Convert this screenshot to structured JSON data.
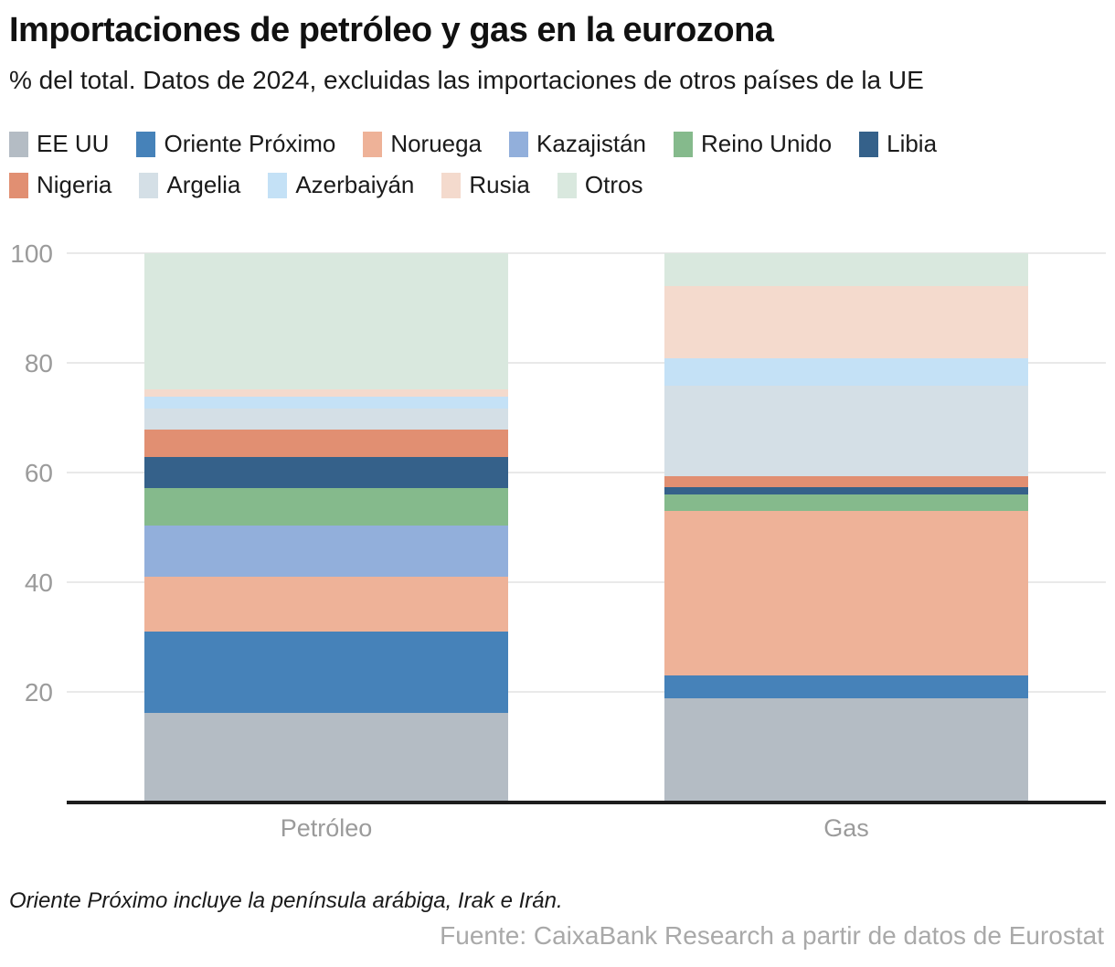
{
  "header": {
    "title": "Importaciones de petróleo y gas en la eurozona",
    "subtitle": "% del total. Datos de 2024, excluidas las importaciones de otros países de la UE"
  },
  "chart_data": {
    "type": "bar",
    "stacked": true,
    "categories": [
      "Petróleo",
      "Gas"
    ],
    "series": [
      {
        "name": "EE UU",
        "color": "#b4bcc4",
        "values": [
          16.2,
          18.8
        ]
      },
      {
        "name": "Oriente Próximo",
        "color": "#4682b9",
        "values": [
          14.8,
          4.2
        ]
      },
      {
        "name": "Noruega",
        "color": "#eeb298",
        "values": [
          10.0,
          30.0
        ]
      },
      {
        "name": "Kazajistán",
        "color": "#92afdb",
        "values": [
          9.3,
          0
        ]
      },
      {
        "name": "Reino Unido",
        "color": "#85ba8c",
        "values": [
          6.9,
          3.0
        ]
      },
      {
        "name": "Libia",
        "color": "#35618a",
        "values": [
          5.6,
          1.3
        ]
      },
      {
        "name": "Nigeria",
        "color": "#e18f72",
        "values": [
          5.0,
          2.0
        ]
      },
      {
        "name": "Argelia",
        "color": "#d4dfe6",
        "values": [
          3.9,
          16.5
        ]
      },
      {
        "name": "Azerbaiyán",
        "color": "#c4e1f6",
        "values": [
          2.1,
          5.0
        ]
      },
      {
        "name": "Rusia",
        "color": "#f4dacd",
        "values": [
          1.4,
          13.2
        ]
      },
      {
        "name": "Otros",
        "color": "#d9e8de",
        "values": [
          24.8,
          6.0
        ]
      }
    ],
    "title": "Importaciones de petróleo y gas en la eurozona",
    "xlabel": "",
    "ylabel": "% del total",
    "ylim": [
      0,
      100
    ],
    "yticks": [
      20,
      40,
      60,
      80,
      100
    ],
    "grid": true,
    "legend_position": "top"
  },
  "footer": {
    "note": "Oriente Próximo incluye la península arábiga, Irak e Irán.",
    "source": "Fuente: CaixaBank Research a partir de datos de Eurostat"
  },
  "colors": {
    "axis_line": "#1d1d1d",
    "gridline": "#e9e9e9",
    "tick_text": "#9b9b9b",
    "source_text": "#a9a9a9"
  }
}
